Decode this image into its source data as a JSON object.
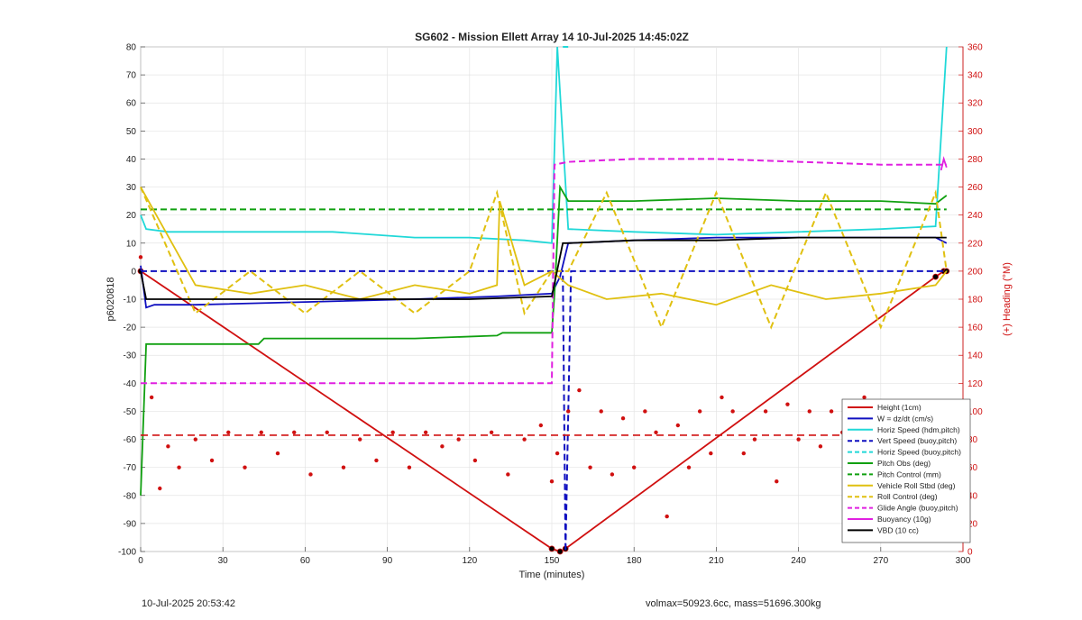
{
  "chart_data": {
    "type": "line",
    "title": "SG602 - Mission Ellett Array 14 10-Jul-2025 14:45:02Z",
    "xlabel": "Time (minutes)",
    "ylabel": "p6020818",
    "y2label": "(+) Heading (°M)",
    "xlim": [
      0,
      300
    ],
    "ylim": [
      -100,
      80
    ],
    "y2lim": [
      0,
      360
    ],
    "xticks": [
      0,
      30,
      60,
      90,
      120,
      150,
      180,
      210,
      240,
      270,
      300
    ],
    "yticks": [
      -100,
      -90,
      -80,
      -70,
      -60,
      -50,
      -40,
      -30,
      -20,
      -10,
      0,
      10,
      20,
      30,
      40,
      50,
      60,
      70,
      80
    ],
    "y2ticks": [
      0,
      20,
      40,
      60,
      80,
      100,
      120,
      140,
      160,
      180,
      200,
      220,
      240,
      260,
      280,
      300,
      320,
      340,
      360
    ],
    "grid": true,
    "legend_position": "bottom-right",
    "series": [
      {
        "name": "Height (1cm)",
        "color": "#d01010",
        "style": "solid-markers",
        "axis": "left",
        "x": [
          0,
          150,
          153,
          155,
          290,
          293,
          294
        ],
        "y": [
          0,
          -99,
          -100,
          -99,
          -2,
          0,
          0
        ]
      },
      {
        "name": "W = dz/dt (cm/s)",
        "color": "#1010c0",
        "style": "solid",
        "axis": "left",
        "x": [
          0,
          2,
          5,
          20,
          60,
          100,
          130,
          150,
          153,
          156,
          180,
          210,
          240,
          270,
          290,
          294
        ],
        "y": [
          2,
          -13,
          -12,
          -12,
          -11,
          -10,
          -9,
          -8,
          -2,
          10,
          11,
          12,
          12,
          12,
          12,
          10
        ]
      },
      {
        "name": "Horiz Speed (hdm,pitch)",
        "color": "#20d8d8",
        "style": "solid",
        "axis": "left",
        "x": [
          0,
          2,
          10,
          40,
          70,
          100,
          120,
          140,
          150,
          152,
          156,
          180,
          210,
          240,
          270,
          290,
          294
        ],
        "y": [
          20,
          15,
          14,
          14,
          14,
          12,
          12,
          11,
          10,
          80,
          15,
          14,
          13,
          14,
          15,
          16,
          80
        ]
      },
      {
        "name": "Vert Speed (buoy,pitch)",
        "color": "#1010c0",
        "style": "dashed",
        "axis": "left",
        "x": [
          0,
          154,
          155,
          157,
          294
        ],
        "y": [
          0,
          0,
          -100,
          0,
          0
        ]
      },
      {
        "name": "Horiz Speed (buoy,pitch)",
        "color": "#20d8d8",
        "style": "dashed",
        "axis": "left",
        "x": [
          154,
          155,
          156
        ],
        "y": [
          80,
          80,
          80
        ]
      },
      {
        "name": "Pitch Obs (deg)",
        "color": "#10a010",
        "style": "solid",
        "axis": "left",
        "x": [
          0,
          2,
          30,
          43,
          45,
          100,
          130,
          132,
          150,
          151,
          153,
          156,
          180,
          210,
          240,
          270,
          290,
          294
        ],
        "y": [
          -80,
          -26,
          -26,
          -26,
          -24,
          -24,
          -23,
          -22,
          -22,
          -8,
          30,
          25,
          25,
          26,
          25,
          25,
          24,
          27
        ]
      },
      {
        "name": "Pitch Control (mm)",
        "color": "#10a010",
        "style": "dashed",
        "axis": "left",
        "x": [
          0,
          294
        ],
        "y": [
          22,
          22
        ]
      },
      {
        "name": "Vehicle Roll Stbd (deg)",
        "color": "#e0c010",
        "style": "solid",
        "axis": "left",
        "x": [
          0,
          20,
          40,
          60,
          80,
          100,
          120,
          130,
          131,
          140,
          150,
          156,
          170,
          190,
          210,
          230,
          250,
          270,
          290,
          294
        ],
        "y": [
          30,
          -5,
          -8,
          -5,
          -10,
          -5,
          -8,
          -5,
          25,
          -5,
          0,
          -5,
          -10,
          -8,
          -12,
          -5,
          -10,
          -8,
          -5,
          0
        ]
      },
      {
        "name": "Roll Control (deg)",
        "color": "#e0c010",
        "style": "dashed",
        "axis": "left",
        "x": [
          0,
          20,
          40,
          60,
          80,
          100,
          120,
          130,
          140,
          150,
          156,
          170,
          190,
          210,
          230,
          250,
          270,
          290,
          294
        ],
        "y": [
          30,
          -15,
          0,
          -15,
          0,
          -15,
          0,
          28,
          -15,
          0,
          0,
          28,
          -20,
          28,
          -20,
          28,
          -20,
          28,
          0
        ]
      },
      {
        "name": "Glide Angle (buoy,pitch)",
        "color": "#e020e0",
        "style": "dashed",
        "axis": "left",
        "x": [
          0,
          2,
          30,
          60,
          90,
          120,
          150,
          151,
          156,
          180,
          210,
          240,
          270,
          290,
          294
        ],
        "y": [
          -40,
          -40,
          -40,
          -40,
          -40,
          -40,
          -40,
          38,
          39,
          40,
          40,
          39,
          38,
          38,
          38
        ]
      },
      {
        "name": "Buoyancy (10g)",
        "color": "#e020e0",
        "style": "solid",
        "axis": "left",
        "x": [
          292,
          293,
          294
        ],
        "y": [
          36,
          40,
          37
        ]
      },
      {
        "name": "VBD (10 cc)",
        "color": "#000000",
        "style": "solid",
        "axis": "left",
        "x": [
          0,
          2,
          30,
          60,
          90,
          120,
          150,
          154,
          156,
          180,
          210,
          240,
          270,
          290,
          294
        ],
        "y": [
          0,
          -10,
          -10,
          -10,
          -10,
          -10,
          -9,
          10,
          10,
          11,
          11,
          12,
          12,
          12,
          12
        ]
      }
    ],
    "heading_series": {
      "color": "#d01010",
      "axis": "right",
      "x": [
        0,
        4,
        7,
        10,
        14,
        20,
        26,
        32,
        38,
        44,
        50,
        56,
        62,
        68,
        74,
        80,
        86,
        92,
        98,
        104,
        110,
        116,
        122,
        128,
        134,
        140,
        146,
        150,
        152,
        156,
        160,
        164,
        168,
        172,
        176,
        180,
        184,
        188,
        192,
        196,
        200,
        204,
        208,
        212,
        216,
        220,
        224,
        228,
        232,
        236,
        240,
        244,
        248,
        252,
        256,
        260,
        264,
        268,
        272,
        276,
        280,
        284,
        288,
        292,
        294
      ],
      "y": [
        210,
        110,
        45,
        75,
        60,
        80,
        65,
        85,
        60,
        85,
        70,
        85,
        55,
        85,
        60,
        80,
        65,
        85,
        60,
        85,
        75,
        80,
        65,
        85,
        55,
        80,
        90,
        50,
        70,
        100,
        115,
        60,
        100,
        55,
        95,
        60,
        100,
        85,
        25,
        90,
        60,
        100,
        70,
        110,
        100,
        70,
        80,
        100,
        50,
        105,
        80,
        100,
        75,
        100,
        85,
        70,
        110,
        85,
        70,
        95,
        105,
        80,
        95,
        60,
        45
      ]
    },
    "heading_reference": {
      "color": "#d01010",
      "style": "dashed",
      "value": 83
    }
  },
  "legend": [
    "Height (1cm)",
    "W = dz/dt (cm/s)",
    "Horiz Speed (hdm,pitch)",
    "Vert Speed (buoy,pitch)",
    "Horiz Speed (buoy,pitch)",
    "Pitch Obs (deg)",
    "Pitch Control (mm)",
    "Vehicle Roll Stbd (deg)",
    "Roll Control (deg)",
    "Glide Angle (buoy,pitch)",
    "Buoyancy (10g)",
    "VBD (10 cc)"
  ],
  "footer": {
    "left": "10-Jul-2025 20:53:42",
    "right": "volmax=50923.6cc, mass=51696.300kg"
  }
}
